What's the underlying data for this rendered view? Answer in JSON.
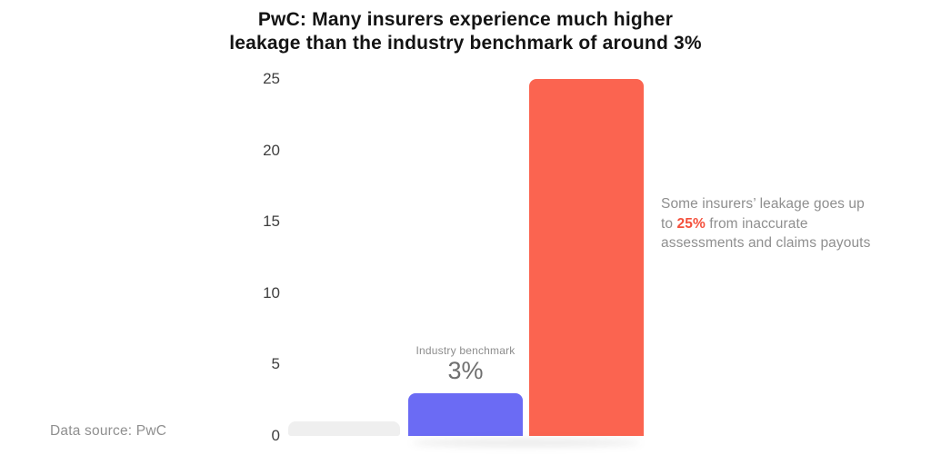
{
  "title": {
    "line1": "PwC: Many insurers experience much higher",
    "line2": "leakage than the industry benchmark of around 3%"
  },
  "chart_data": {
    "type": "bar",
    "title": "PwC: Many insurers experience much higher leakage than the industry benchmark of around 3%",
    "categories": [
      "",
      "Industry benchmark",
      ""
    ],
    "values": [
      1,
      3,
      25
    ],
    "colors": [
      "#efefef",
      "#6b6bf4",
      "#fb6450"
    ],
    "ylim": [
      0,
      25
    ],
    "yticks": [
      0,
      5,
      10,
      15,
      20,
      25
    ],
    "grid": false,
    "legend": false,
    "xlabel": "",
    "ylabel": "",
    "bar_label": {
      "text": "Industry benchmark",
      "value": "3%"
    },
    "annotation": "Some insurers’ leakage goes up to 25% from inaccurate assessments and claims payouts",
    "source": "Data source: PwC"
  },
  "labels": {
    "benchmark_label": "Industry benchmark",
    "benchmark_value": "3%"
  },
  "annotation": {
    "line1": "Some insurers’ leakage goes up",
    "line2_pre": "to ",
    "line2_highlight": "25%",
    "line2_post": " from inaccurate",
    "line3": "assessments and claims payouts",
    "highlight_color": "#f4503c"
  },
  "axis": {
    "tick_color": "#3f3f3f"
  },
  "footer": {
    "source": "Data source: PwC"
  }
}
